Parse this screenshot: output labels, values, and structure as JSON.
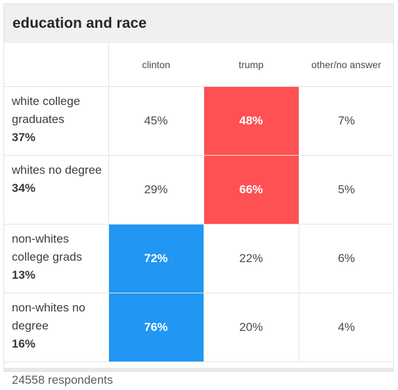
{
  "title": "education and race",
  "columns": [
    "clinton",
    "trump",
    "other/no answer"
  ],
  "rows": [
    {
      "label": "white college graduates",
      "share": "37%",
      "values": [
        "45%",
        "48%",
        "7%"
      ],
      "winner": "trump"
    },
    {
      "label": "whites no degree",
      "share": "34%",
      "values": [
        "29%",
        "66%",
        "5%"
      ],
      "winner": "trump"
    },
    {
      "label": "non-whites college grads",
      "share": "13%",
      "values": [
        "72%",
        "22%",
        "6%"
      ],
      "winner": "clinton"
    },
    {
      "label": "non-whites no degree",
      "share": "16%",
      "values": [
        "76%",
        "20%",
        "4%"
      ],
      "winner": "clinton"
    }
  ],
  "respondents": "24558 respondents",
  "colors": {
    "trump": "#ff5053",
    "clinton": "#2196f3"
  }
}
